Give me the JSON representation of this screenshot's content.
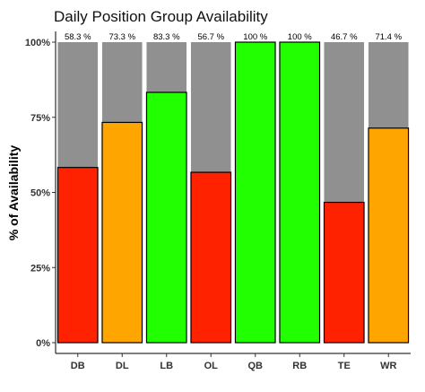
{
  "chart_data": {
    "type": "bar",
    "title": "Daily Position Group Availability",
    "xlabel": "",
    "ylabel": "% of Availability",
    "categories": [
      "DB",
      "DL",
      "LB",
      "OL",
      "QB",
      "RB",
      "TE",
      "WR"
    ],
    "values": [
      58.3,
      73.3,
      83.3,
      56.7,
      100,
      100,
      46.7,
      71.4
    ],
    "data_labels": [
      "58.3 %",
      "73.3 %",
      "83.3 %",
      "56.7 %",
      "100 %",
      "100 %",
      "46.7 %",
      "71.4 %"
    ],
    "bar_colors": [
      "#ff2200",
      "#ffa500",
      "#22ff00",
      "#ff2200",
      "#22ff00",
      "#22ff00",
      "#ff2200",
      "#ffa500"
    ],
    "background_bar_value": 100,
    "background_bar_color": "#909090",
    "y_ticks": [
      0,
      25,
      50,
      75,
      100
    ],
    "y_tick_labels": [
      "0%",
      "25%",
      "50%",
      "75%",
      "100%"
    ],
    "ylim": [
      0,
      100
    ],
    "grid": false,
    "legend": "none"
  }
}
